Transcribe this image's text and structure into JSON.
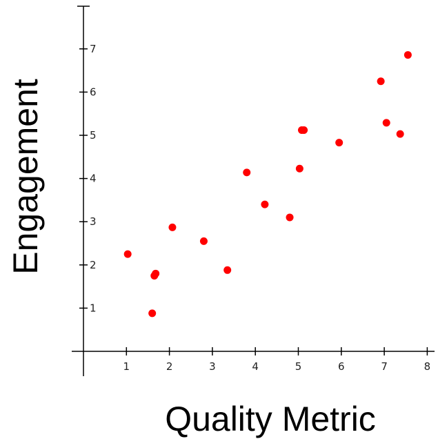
{
  "chart_data": {
    "type": "scatter",
    "title": "",
    "xlabel": "Quality Metric",
    "ylabel": "Engagement",
    "xlim": [
      0,
      8
    ],
    "ylim": [
      0,
      7
    ],
    "xticks": [
      1,
      2,
      3,
      4,
      5,
      6,
      7,
      8
    ],
    "yticks": [
      1,
      2,
      3,
      4,
      5,
      6,
      7
    ],
    "xtick_labels": [
      "1",
      "2",
      "3",
      "4",
      "5",
      "6",
      "7",
      "8"
    ],
    "ytick_labels": [
      "1",
      "2",
      "3",
      "4",
      "5",
      "6",
      "7"
    ],
    "grid": false,
    "legend": "none",
    "point_color": "#ff0000",
    "axis_color": "#000000",
    "points": [
      {
        "x": 1.03,
        "y": 2.25
      },
      {
        "x": 1.6,
        "y": 0.88
      },
      {
        "x": 1.65,
        "y": 1.75
      },
      {
        "x": 1.68,
        "y": 1.8
      },
      {
        "x": 2.07,
        "y": 2.87
      },
      {
        "x": 2.8,
        "y": 2.55
      },
      {
        "x": 3.35,
        "y": 1.88
      },
      {
        "x": 3.8,
        "y": 4.14
      },
      {
        "x": 4.22,
        "y": 3.4
      },
      {
        "x": 4.8,
        "y": 3.1
      },
      {
        "x": 5.03,
        "y": 4.23
      },
      {
        "x": 5.08,
        "y": 5.12
      },
      {
        "x": 5.13,
        "y": 5.12
      },
      {
        "x": 5.95,
        "y": 4.83
      },
      {
        "x": 6.92,
        "y": 6.25
      },
      {
        "x": 7.05,
        "y": 5.29
      },
      {
        "x": 7.37,
        "y": 5.03
      },
      {
        "x": 7.55,
        "y": 6.86
      }
    ]
  }
}
